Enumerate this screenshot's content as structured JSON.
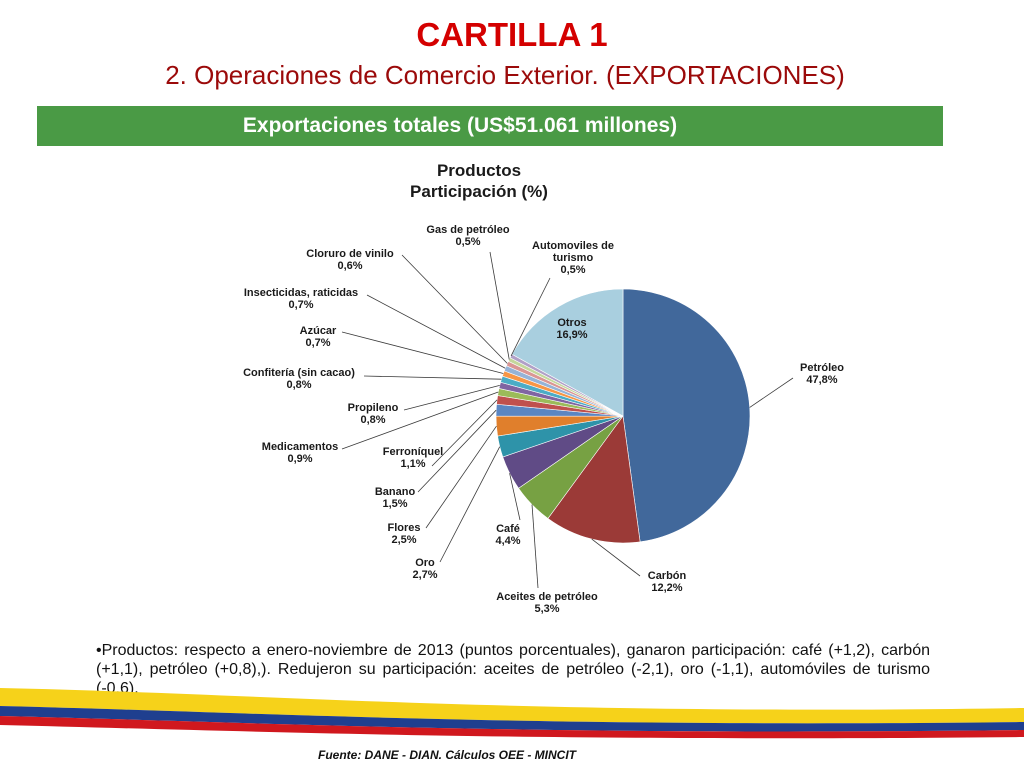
{
  "slide": {
    "title": "CARTILLA 1",
    "subtitle": "2. Operaciones de Comercio Exterior. (EXPORTACIONES)",
    "banner": "Exportaciones totales (US$51.061 millones)",
    "notes": "•Productos: respecto a enero-noviembre de 2013 (puntos porcentuales), ganaron participación: café (+1,2), carbón (+1,1), petróleo (+0,8),). Redujeron su participación: aceites de petróleo (-2,1), oro (-1,1), automóviles de turismo (-0,6).",
    "source": "Fuente: DANE - DIAN. Cálculos OEE - MINCIT"
  },
  "colors": {
    "title_red": "#d40000",
    "banner_green": "#4a9a45",
    "flag_yellow": "#f6d21a",
    "flag_blue": "#1f3f8f",
    "flag_red": "#d0181e"
  },
  "chart_data": {
    "type": "pie",
    "title": "Productos",
    "subtitle": "Participación (%)",
    "slices": [
      {
        "label": "Petróleo",
        "value_label": "47,8%",
        "value": 47.8,
        "color": "#41689b"
      },
      {
        "label": "Carbón",
        "value_label": "12,2%",
        "value": 12.2,
        "color": "#9b3a37"
      },
      {
        "label": "Aceites de petróleo",
        "value_label": "5,3%",
        "value": 5.3,
        "color": "#77a143"
      },
      {
        "label": "Café",
        "value_label": "4,4%",
        "value": 4.4,
        "color": "#604b86"
      },
      {
        "label": "Oro",
        "value_label": "2,7%",
        "value": 2.7,
        "color": "#2e93a9"
      },
      {
        "label": "Flores",
        "value_label": "2,5%",
        "value": 2.5,
        "color": "#e07f2c"
      },
      {
        "label": "Banano",
        "value_label": "1,5%",
        "value": 1.5,
        "color": "#5b86c2"
      },
      {
        "label": "Ferroníquel",
        "value_label": "1,1%",
        "value": 1.1,
        "color": "#c0504d"
      },
      {
        "label": "Medicamentos",
        "value_label": "0,9%",
        "value": 0.9,
        "color": "#9bbb59"
      },
      {
        "label": "Propileno",
        "value_label": "0,8%",
        "value": 0.8,
        "color": "#8064a2"
      },
      {
        "label": "Confitería (sin cacao)",
        "value_label": "0,8%",
        "value": 0.8,
        "color": "#4bacc6"
      },
      {
        "label": "Azúcar",
        "value_label": "0,7%",
        "value": 0.7,
        "color": "#f79646"
      },
      {
        "label": "Insecticidas, raticidas",
        "value_label": "0,7%",
        "value": 0.7,
        "color": "#95b3d7"
      },
      {
        "label": "Cloruro de vinilo",
        "value_label": "0,6%",
        "value": 0.6,
        "color": "#da9694"
      },
      {
        "label": "Gas de petróleo",
        "value_label": "0,5%",
        "value": 0.5,
        "color": "#c4d79b"
      },
      {
        "label": "Automoviles de turismo",
        "value_label": "0,5%",
        "value": 0.5,
        "color": "#b1a0c7"
      },
      {
        "label": "Otros",
        "value_label": "16,9%",
        "value": 16.9,
        "color": "#a9cfdf"
      }
    ]
  }
}
